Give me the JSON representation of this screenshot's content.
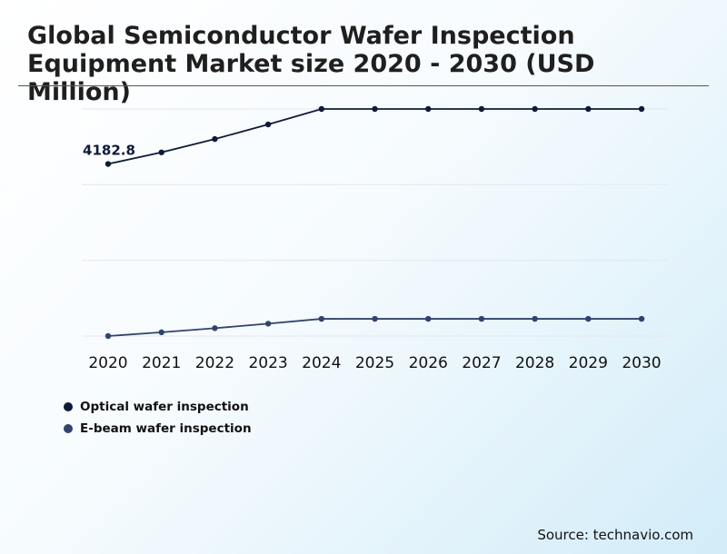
{
  "chart_data": {
    "type": "line",
    "title": "Global Semiconductor Wafer Inspection Equipment Market size 2020 - 2030 (USD Million)",
    "x": [
      "2020",
      "2021",
      "2022",
      "2023",
      "2024",
      "2025",
      "2026",
      "2027",
      "2028",
      "2029",
      "2030"
    ],
    "series": [
      {
        "name": "Optical wafer inspection",
        "color": "#0d1b3a",
        "values": [
          4182.8,
          4384,
          4615,
          4868,
          5136,
          5136,
          5136,
          5136,
          5136,
          5136,
          5136
        ]
      },
      {
        "name": "E-beam wafer inspection",
        "color": "#2f4373",
        "values": [
          1200,
          1265,
          1336,
          1414,
          1498,
          1498,
          1498,
          1498,
          1498,
          1498,
          1498
        ]
      }
    ],
    "data_labels": [
      {
        "series": 0,
        "index": 0,
        "text": "4182.8"
      }
    ],
    "ylim": [
      1200,
      5136
    ],
    "grid": true,
    "legend_position": "bottom-left"
  },
  "source": "Source: technavio.com"
}
